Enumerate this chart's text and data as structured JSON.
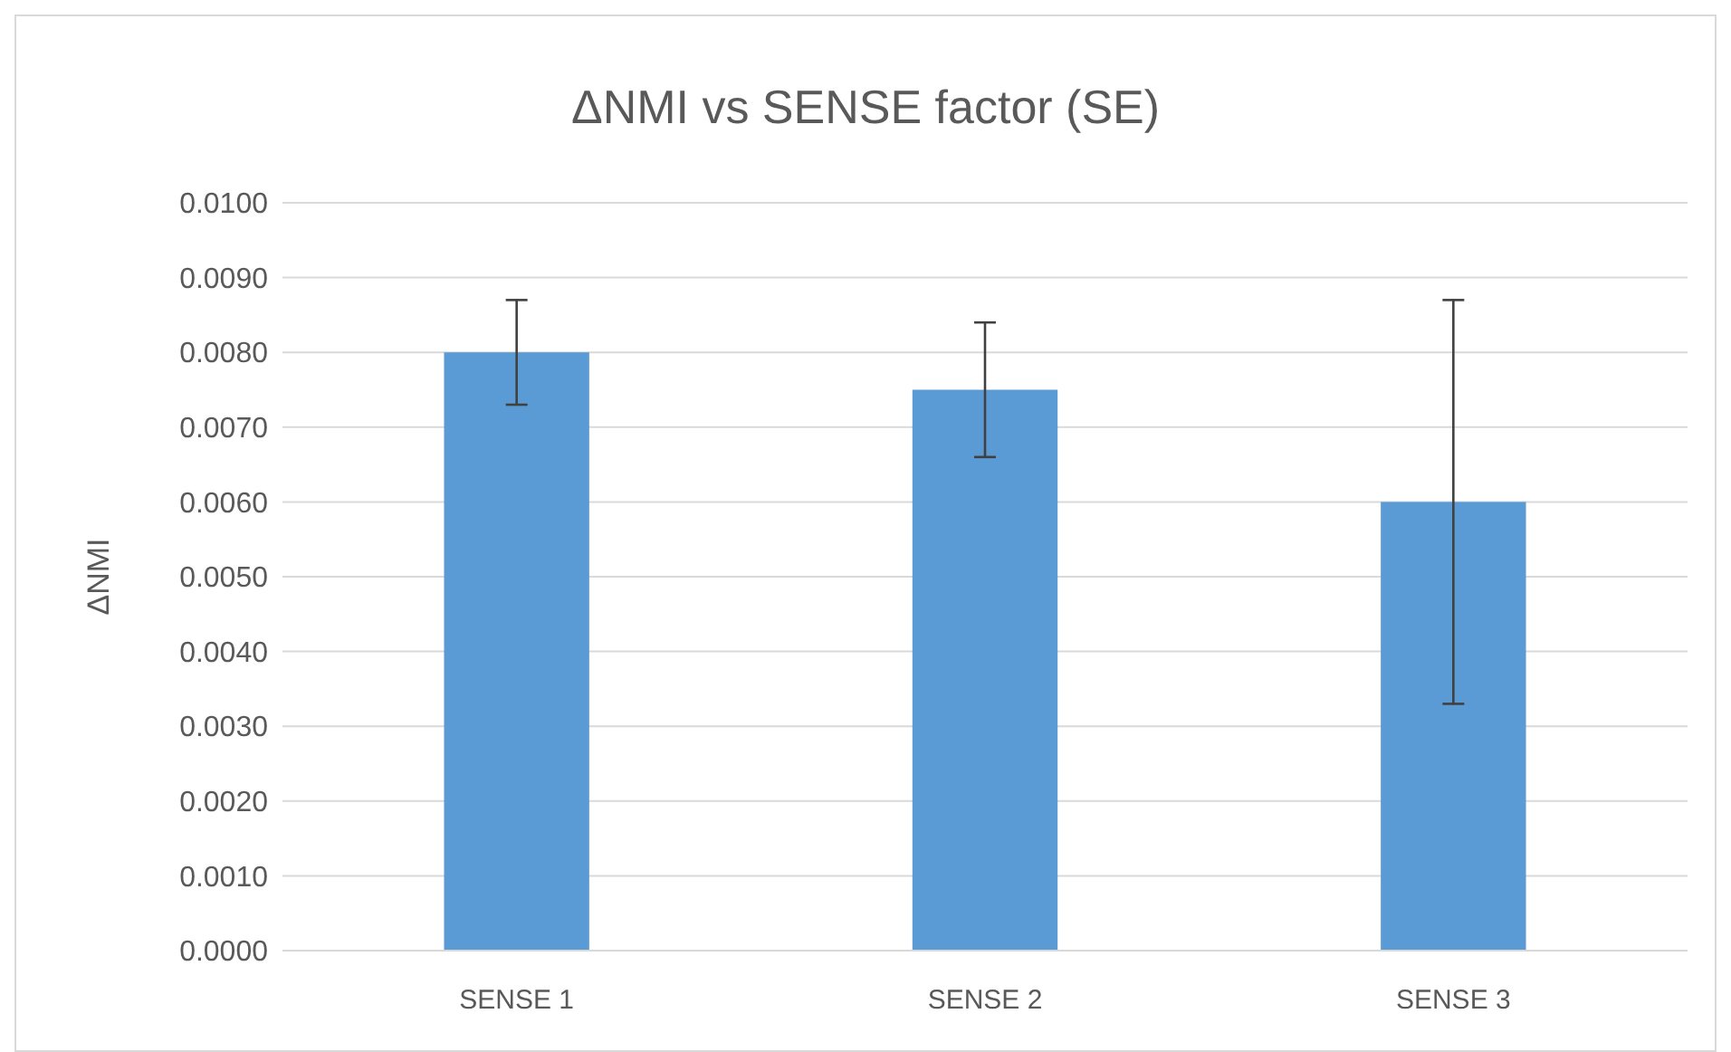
{
  "chart_data": {
    "type": "bar",
    "title": "ΔNMI vs SENSE factor (SE)",
    "ylabel": "ΔNMI",
    "categories": [
      "SENSE 1",
      "SENSE 2",
      "SENSE 3"
    ],
    "values": [
      0.008,
      0.0075,
      0.006
    ],
    "errors": [
      0.0007,
      0.0009,
      0.0027
    ],
    "color": "#5b9bd5",
    "grid": "y",
    "ylim": [
      0,
      0.01
    ],
    "yticks": [
      {
        "value": 0,
        "label": "0.0000"
      },
      {
        "value": 0.001,
        "label": "0.0010"
      },
      {
        "value": 0.002,
        "label": "0.0020"
      },
      {
        "value": 0.003,
        "label": "0.0030"
      },
      {
        "value": 0.004,
        "label": "0.0040"
      },
      {
        "value": 0.005,
        "label": "0.0050"
      },
      {
        "value": 0.006,
        "label": "0.0060"
      },
      {
        "value": 0.007,
        "label": "0.0070"
      },
      {
        "value": 0.008,
        "label": "0.0080"
      },
      {
        "value": 0.009,
        "label": "0.0090"
      },
      {
        "value": 0.01,
        "label": "0.0100"
      }
    ]
  }
}
